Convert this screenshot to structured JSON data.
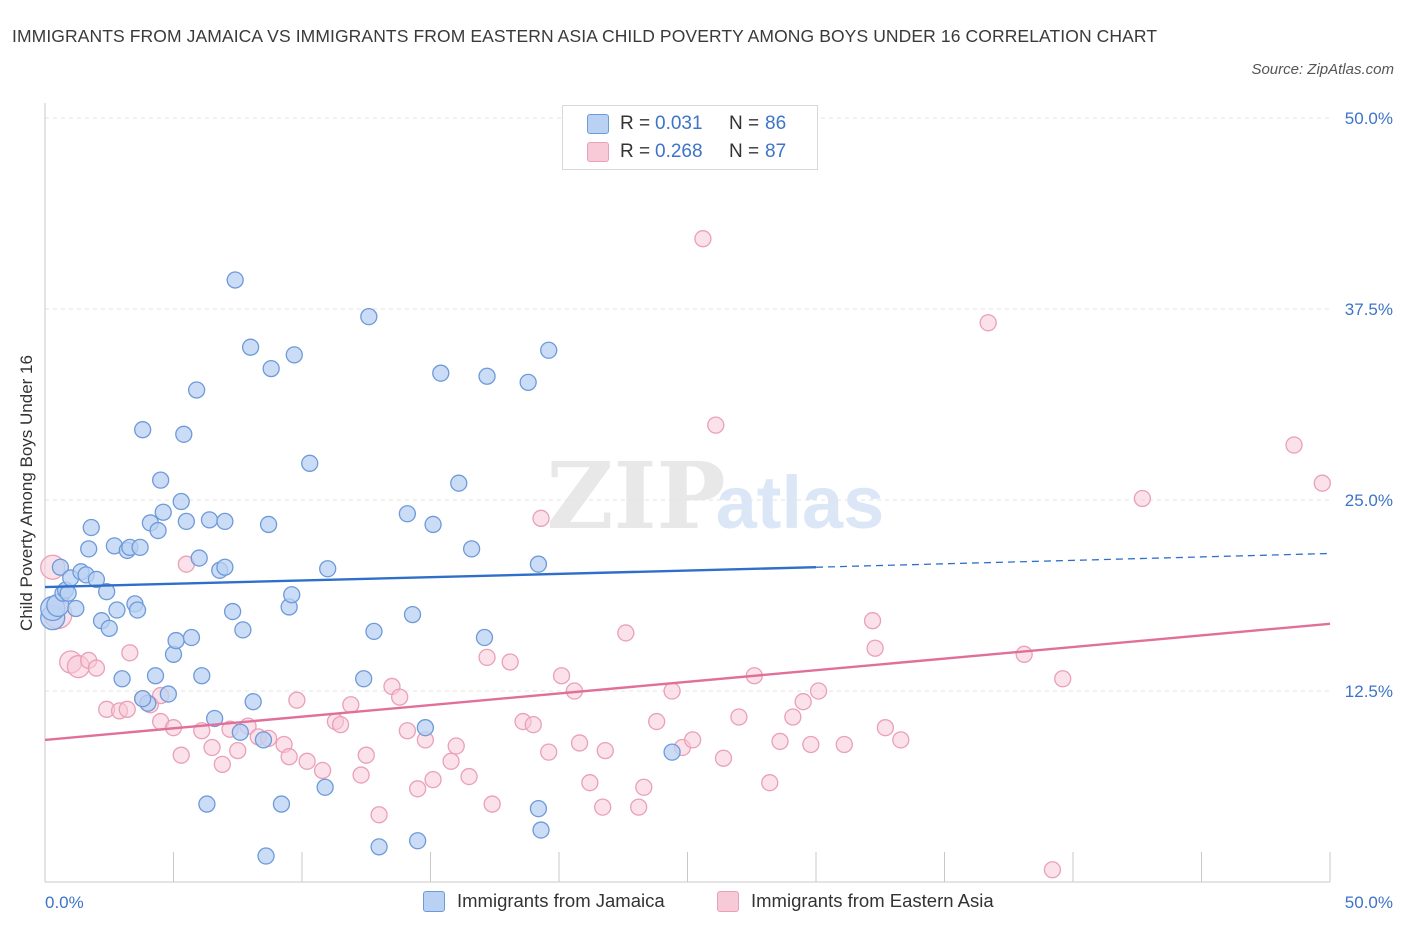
{
  "title": "IMMIGRANTS FROM JAMAICA VS IMMIGRANTS FROM EASTERN ASIA CHILD POVERTY AMONG BOYS UNDER 16 CORRELATION CHART",
  "source": "Source: ZipAtlas.com",
  "watermark": {
    "zip": "ZIP",
    "atlas": "atlas"
  },
  "legend": {
    "r_label": "R =",
    "n_label": "N =",
    "series": [
      {
        "r": "0.031",
        "n": "86"
      },
      {
        "r": "0.268",
        "n": "87"
      }
    ]
  },
  "colors": {
    "jamaica_fill": "#b9d1f3",
    "jamaica_stroke": "#6e9ad9",
    "jamaica_line": "#2f6fca",
    "asia_fill": "#f8c9d7",
    "asia_stroke": "#eaa0b7",
    "asia_line": "#e0709a",
    "tick_label": "#3d74c8",
    "grid": "#e3e3e3"
  },
  "chart_data": {
    "type": "scatter",
    "title": "IMMIGRANTS FROM JAMAICA VS IMMIGRANTS FROM EASTERN ASIA CHILD POVERTY AMONG BOYS UNDER 16 CORRELATION CHART",
    "xlabel": "",
    "ylabel": "Child Poverty Among Boys Under 16",
    "xlim": [
      0,
      50
    ],
    "ylim": [
      0,
      50
    ],
    "x_tick_labels": [
      {
        "value": 0,
        "label": "0.0%"
      },
      {
        "value": 50,
        "label": "50.0%"
      }
    ],
    "y_ticks": [
      {
        "value": 12.5,
        "label": "12.5%"
      },
      {
        "value": 25.0,
        "label": "25.0%"
      },
      {
        "value": 37.5,
        "label": "37.5%"
      },
      {
        "value": 50.0,
        "label": "50.0%"
      }
    ],
    "grid": true,
    "series": [
      {
        "name": "Immigrants from Jamaica",
        "R": 0.031,
        "N": 86,
        "trend": {
          "x0": 0,
          "y0": 19.3,
          "x1": 30,
          "y1": 20.6,
          "dashed_to_x": 50,
          "dashed_to_y": 21.5
        },
        "points": [
          [
            0.3,
            17.3,
            3
          ],
          [
            0.3,
            17.9,
            3
          ],
          [
            0.5,
            18.1,
            2
          ],
          [
            0.6,
            20.6,
            1
          ],
          [
            0.7,
            18.9,
            1
          ],
          [
            0.8,
            19.1,
            1
          ],
          [
            0.9,
            18.9,
            1
          ],
          [
            1.0,
            19.9,
            1
          ],
          [
            1.2,
            17.9,
            1
          ],
          [
            1.4,
            20.3,
            1
          ],
          [
            1.6,
            20.1,
            1
          ],
          [
            1.7,
            21.8,
            1
          ],
          [
            1.8,
            23.2,
            1
          ],
          [
            2.0,
            19.8,
            1
          ],
          [
            2.2,
            17.1,
            1
          ],
          [
            2.4,
            19.0,
            1
          ],
          [
            2.5,
            16.6,
            1
          ],
          [
            2.7,
            22.0,
            1
          ],
          [
            2.8,
            17.8,
            1
          ],
          [
            3.0,
            13.3,
            1
          ],
          [
            3.2,
            21.7,
            1
          ],
          [
            3.3,
            21.9,
            1
          ],
          [
            3.5,
            18.2,
            1
          ],
          [
            3.6,
            17.8,
            1
          ],
          [
            3.7,
            21.9,
            1
          ],
          [
            3.8,
            29.6,
            1
          ],
          [
            4.0,
            11.7,
            1
          ],
          [
            4.1,
            23.5,
            1
          ],
          [
            4.3,
            13.5,
            1
          ],
          [
            4.4,
            23.0,
            1
          ],
          [
            4.5,
            26.3,
            1
          ],
          [
            4.6,
            24.2,
            1
          ],
          [
            4.8,
            12.3,
            1
          ],
          [
            5.0,
            14.9,
            1
          ],
          [
            5.1,
            15.8,
            1
          ],
          [
            5.3,
            24.9,
            1
          ],
          [
            5.4,
            29.3,
            1
          ],
          [
            5.5,
            23.6,
            1
          ],
          [
            5.7,
            16.0,
            1
          ],
          [
            5.9,
            32.2,
            1
          ],
          [
            6.0,
            21.2,
            1
          ],
          [
            6.1,
            13.5,
            1
          ],
          [
            6.3,
            5.1,
            1
          ],
          [
            6.4,
            23.7,
            1
          ],
          [
            6.6,
            10.7,
            1
          ],
          [
            6.8,
            20.4,
            1
          ],
          [
            7.0,
            20.6,
            1
          ],
          [
            7.0,
            23.6,
            1
          ],
          [
            7.3,
            17.7,
            1
          ],
          [
            7.4,
            39.4,
            1
          ],
          [
            7.6,
            9.8,
            1
          ],
          [
            7.7,
            16.5,
            1
          ],
          [
            8.0,
            35.0,
            1
          ],
          [
            8.1,
            11.8,
            1
          ],
          [
            8.5,
            9.3,
            1
          ],
          [
            8.6,
            1.7,
            1
          ],
          [
            8.7,
            23.4,
            1
          ],
          [
            8.8,
            33.6,
            1
          ],
          [
            9.2,
            5.1,
            1
          ],
          [
            9.5,
            18.0,
            1
          ],
          [
            9.6,
            18.8,
            1
          ],
          [
            9.7,
            34.5,
            1
          ],
          [
            10.3,
            27.4,
            1
          ],
          [
            10.9,
            6.2,
            1
          ],
          [
            11.0,
            20.5,
            1
          ],
          [
            12.4,
            13.3,
            1
          ],
          [
            12.6,
            37.0,
            1
          ],
          [
            12.8,
            16.4,
            1
          ],
          [
            13.0,
            2.3,
            1
          ],
          [
            14.1,
            24.1,
            1
          ],
          [
            14.3,
            17.5,
            1
          ],
          [
            14.5,
            2.7,
            1
          ],
          [
            14.8,
            10.1,
            1
          ],
          [
            15.1,
            23.4,
            1
          ],
          [
            15.4,
            33.3,
            1
          ],
          [
            16.1,
            26.1,
            1
          ],
          [
            16.6,
            21.8,
            1
          ],
          [
            17.1,
            16.0,
            1
          ],
          [
            17.2,
            33.1,
            1
          ],
          [
            18.8,
            32.7,
            1
          ],
          [
            19.2,
            4.8,
            1
          ],
          [
            19.3,
            3.4,
            1
          ],
          [
            19.2,
            20.8,
            1
          ],
          [
            19.6,
            34.8,
            1
          ],
          [
            24.4,
            8.5,
            1
          ],
          [
            3.8,
            12.0,
            1
          ]
        ]
      },
      {
        "name": "Immigrants from Eastern Asia",
        "R": 0.268,
        "N": 87,
        "trend": {
          "x0": 0,
          "y0": 9.3,
          "x1": 50,
          "y1": 16.9
        },
        "points": [
          [
            0.3,
            20.6,
            3
          ],
          [
            0.5,
            17.5,
            4
          ],
          [
            1.0,
            14.4,
            2
          ],
          [
            1.3,
            14.1,
            2
          ],
          [
            1.7,
            14.5,
            1
          ],
          [
            2.0,
            14.0,
            1
          ],
          [
            2.4,
            11.3,
            1
          ],
          [
            2.9,
            11.2,
            1
          ],
          [
            3.2,
            11.3,
            1
          ],
          [
            3.3,
            15.0,
            1
          ],
          [
            3.8,
            12.0,
            1
          ],
          [
            4.1,
            11.6,
            1
          ],
          [
            4.5,
            12.2,
            1
          ],
          [
            4.5,
            10.5,
            1
          ],
          [
            5.0,
            10.1,
            1
          ],
          [
            5.3,
            8.3,
            1
          ],
          [
            5.5,
            20.8,
            1
          ],
          [
            6.1,
            9.9,
            1
          ],
          [
            6.5,
            8.8,
            1
          ],
          [
            6.9,
            7.7,
            1
          ],
          [
            7.2,
            10.0,
            1
          ],
          [
            7.5,
            8.6,
            1
          ],
          [
            7.9,
            10.2,
            1
          ],
          [
            8.3,
            9.5,
            1
          ],
          [
            8.7,
            9.4,
            1
          ],
          [
            9.3,
            9.0,
            1
          ],
          [
            9.5,
            8.2,
            1
          ],
          [
            9.8,
            11.9,
            1
          ],
          [
            10.2,
            7.9,
            1
          ],
          [
            10.8,
            7.3,
            1
          ],
          [
            11.3,
            10.5,
            1
          ],
          [
            11.5,
            10.3,
            1
          ],
          [
            11.9,
            11.6,
            1
          ],
          [
            12.3,
            7.0,
            1
          ],
          [
            12.5,
            8.3,
            1
          ],
          [
            13.0,
            4.4,
            1
          ],
          [
            13.5,
            12.8,
            1
          ],
          [
            13.8,
            12.1,
            1
          ],
          [
            14.1,
            9.9,
            1
          ],
          [
            14.5,
            6.1,
            1
          ],
          [
            14.8,
            9.3,
            1
          ],
          [
            15.1,
            6.7,
            1
          ],
          [
            15.8,
            7.9,
            1
          ],
          [
            16.0,
            8.9,
            1
          ],
          [
            16.5,
            6.9,
            1
          ],
          [
            17.2,
            14.7,
            1
          ],
          [
            17.4,
            5.1,
            1
          ],
          [
            18.1,
            14.4,
            1
          ],
          [
            18.6,
            10.5,
            1
          ],
          [
            19.0,
            10.3,
            1
          ],
          [
            19.3,
            23.8,
            1
          ],
          [
            19.6,
            8.5,
            1
          ],
          [
            20.1,
            13.5,
            1
          ],
          [
            20.6,
            12.5,
            1
          ],
          [
            20.8,
            9.1,
            1
          ],
          [
            21.2,
            6.5,
            1
          ],
          [
            21.8,
            8.6,
            1
          ],
          [
            21.7,
            4.9,
            1
          ],
          [
            22.6,
            16.3,
            1
          ],
          [
            23.1,
            4.9,
            1
          ],
          [
            23.3,
            6.2,
            1
          ],
          [
            23.8,
            10.5,
            1
          ],
          [
            24.4,
            12.5,
            1
          ],
          [
            24.8,
            8.8,
            1
          ],
          [
            25.2,
            9.3,
            1
          ],
          [
            25.6,
            42.1,
            1
          ],
          [
            26.1,
            29.9,
            1
          ],
          [
            26.4,
            8.1,
            1
          ],
          [
            27.0,
            10.8,
            1
          ],
          [
            27.6,
            13.5,
            1
          ],
          [
            28.2,
            6.5,
            1
          ],
          [
            28.6,
            9.2,
            1
          ],
          [
            29.1,
            10.8,
            1
          ],
          [
            29.5,
            11.8,
            1
          ],
          [
            29.8,
            9.0,
            1
          ],
          [
            30.1,
            12.5,
            1
          ],
          [
            31.1,
            9.0,
            1
          ],
          [
            32.2,
            17.1,
            1
          ],
          [
            32.3,
            15.3,
            1
          ],
          [
            32.7,
            10.1,
            1
          ],
          [
            33.3,
            9.3,
            1
          ],
          [
            36.7,
            36.6,
            1
          ],
          [
            38.1,
            14.9,
            1
          ],
          [
            39.2,
            0.8,
            1
          ],
          [
            39.6,
            13.3,
            1
          ],
          [
            42.7,
            25.1,
            1
          ],
          [
            48.6,
            28.6,
            1
          ],
          [
            49.7,
            26.1,
            1
          ]
        ]
      }
    ]
  },
  "bottom_legend": [
    "Immigrants from Jamaica",
    "Immigrants from Eastern Asia"
  ]
}
